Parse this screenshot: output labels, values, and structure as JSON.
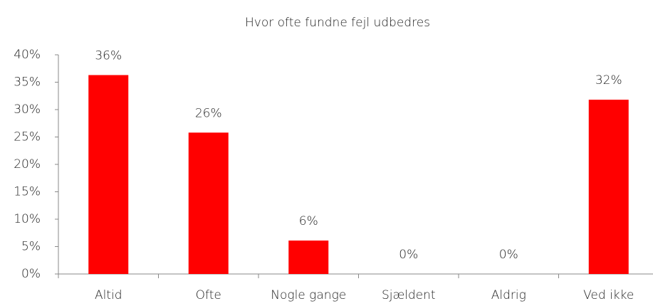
{
  "chart_data": {
    "type": "bar",
    "title": "Hvor ofte fundne fejl udbedres",
    "categories": [
      "Altid",
      "Ofte",
      "Nogle gange",
      "Sjældent",
      "Aldrig",
      "Ved ikke"
    ],
    "values": [
      36.3,
      25.8,
      6.1,
      0,
      0,
      31.8
    ],
    "value_labels": [
      "36%",
      "26%",
      "6%",
      "0%",
      "0%",
      "32%"
    ],
    "color": "#ff0000",
    "ylim": [
      0,
      40
    ],
    "yticks": [
      {
        "value": 0,
        "label": "0%"
      },
      {
        "value": 5,
        "label": "5%"
      },
      {
        "value": 10,
        "label": "10%"
      },
      {
        "value": 15,
        "label": "15%"
      },
      {
        "value": 20,
        "label": "20%"
      },
      {
        "value": 25,
        "label": "25%"
      },
      {
        "value": 30,
        "label": "30%"
      },
      {
        "value": 35,
        "label": "35%"
      },
      {
        "value": 40,
        "label": "40%"
      }
    ],
    "grid": false
  }
}
